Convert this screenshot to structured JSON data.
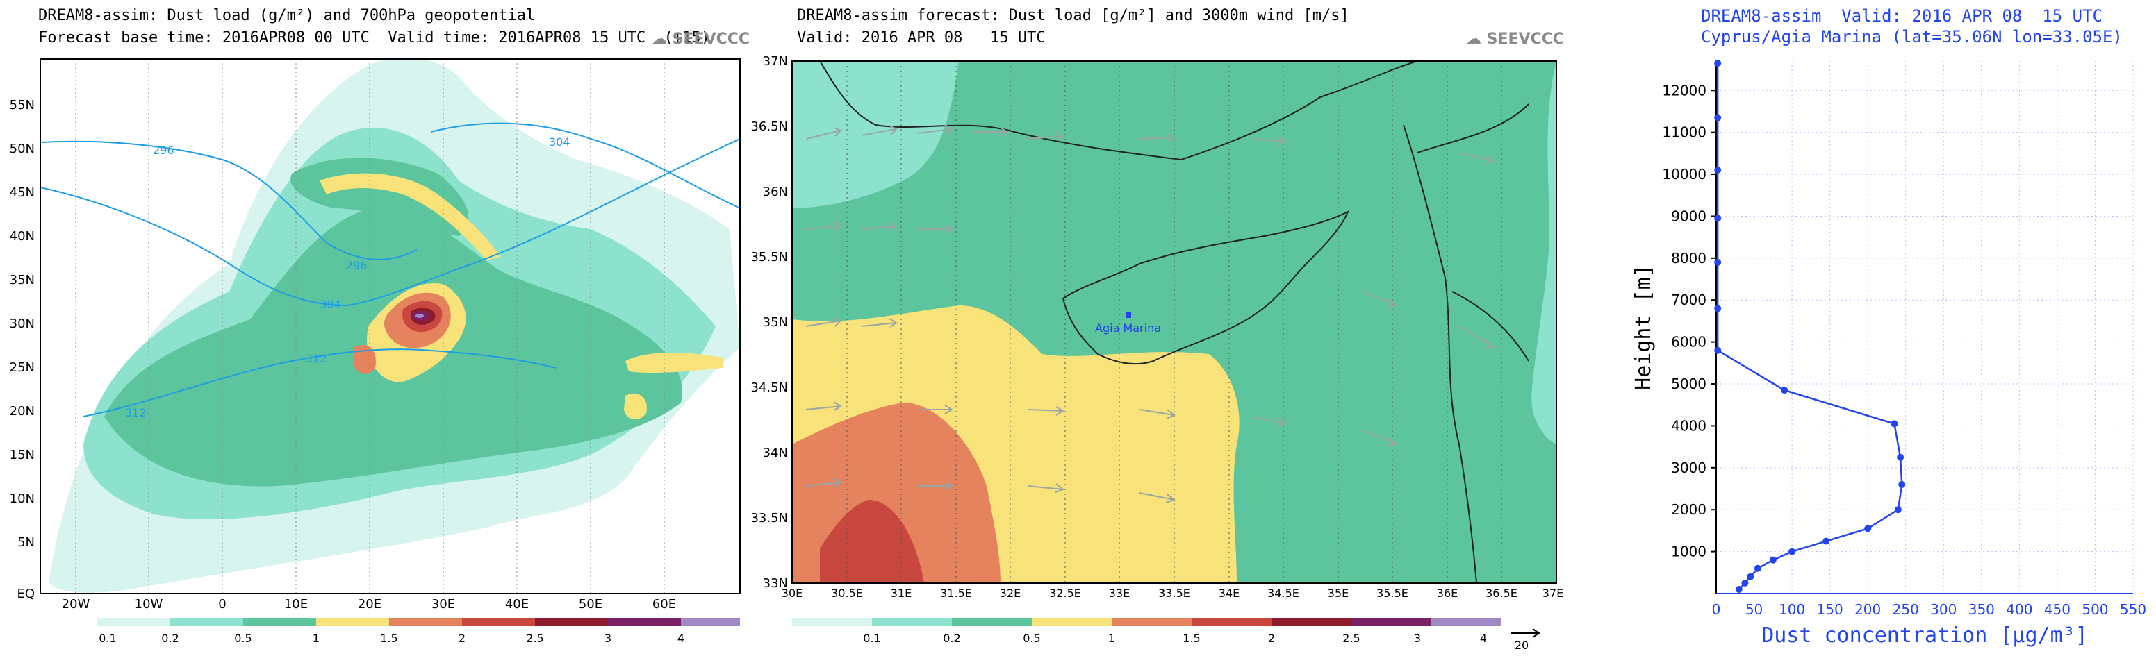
{
  "colors": {
    "c01": "#d7f4ee",
    "c02": "#8de2cd",
    "c05": "#5cc59e",
    "c1": "#f7e37a",
    "c15": "#e4835e",
    "c2": "#c8473e",
    "c25": "#8c1c2d",
    "c3": "#7a2265",
    "c4": "#9f88c4",
    "profile": "#2244ee",
    "logo": "#8a8a8a"
  },
  "left_panel": {
    "title": "DREAM8-assim: Dust load (g/m²) and 700hPa geopotential",
    "subtitle": "Forecast base time: 2016APR08 00 UTC  Valid time: 2016APR08 15 UTC  (+15)",
    "logo": "SEEVCCC",
    "lat_labels": [
      "55N",
      "50N",
      "45N",
      "40N",
      "35N",
      "30N",
      "25N",
      "20N",
      "15N",
      "10N",
      "5N",
      "EQ"
    ],
    "lon_labels": [
      "20W",
      "10W",
      "0",
      "10E",
      "20E",
      "30E",
      "40E",
      "50E",
      "60E"
    ],
    "contour_labels": [
      "296",
      "304",
      "296",
      "304",
      "312",
      "312"
    ],
    "legend": [
      "0.1",
      "0.2",
      "0.5",
      "1",
      "1.5",
      "2",
      "2.5",
      "3",
      "4"
    ]
  },
  "mid_panel": {
    "title": "DREAM8-assim forecast: Dust load [g/m²] and 3000m wind [m/s]",
    "subtitle": "Valid: 2016 APR 08   15 UTC",
    "logo": "SEEVCCC",
    "site_label": "Agia Marina",
    "lat_labels": [
      "37N",
      "36.5N",
      "36N",
      "35.5N",
      "35N",
      "34.5N",
      "34N",
      "33.5N",
      "33N"
    ],
    "lon_labels": [
      "30E",
      "30.5E",
      "31E",
      "31.5E",
      "32E",
      "32.5E",
      "33E",
      "33.5E",
      "34E",
      "34.5E",
      "35E",
      "35.5E",
      "36E",
      "36.5E",
      "37E"
    ],
    "legend": [
      "0.1",
      "0.2",
      "0.5",
      "1",
      "1.5",
      "2",
      "2.5",
      "3",
      "4"
    ],
    "wind_ref": "20"
  },
  "right_panel": {
    "title_line1": "DREAM8-assim  Valid: 2016 APR 08  15 UTC",
    "title_line2": "Cyprus/Agia Marina (lat=35.06N lon=33.05E)",
    "ylabel": "Height [m]",
    "xlabel": "Dust concentration [μg/m³]"
  },
  "chart_data": [
    {
      "type": "heatmap",
      "title": "DREAM8-assim: Dust load (g/m²) and 700hPa geopotential",
      "xlabel": "",
      "ylabel": "",
      "xlim": [
        -25,
        70
      ],
      "ylim": [
        0,
        60
      ],
      "levels": [
        0.1,
        0.2,
        0.5,
        1,
        1.5,
        2,
        2.5,
        3,
        4
      ],
      "max_region": {
        "lon": 26,
        "lat": 31,
        "value": 3.5
      }
    },
    {
      "type": "heatmap",
      "title": "DREAM8-assim forecast: Dust load [g/m²] and 3000m wind [m/s]",
      "xlabel": "",
      "ylabel": "",
      "xlim": [
        30,
        37
      ],
      "ylim": [
        33,
        37
      ],
      "levels": [
        0.1,
        0.2,
        0.5,
        1,
        1.5,
        2,
        2.5,
        3,
        4
      ],
      "site": {
        "name": "Agia Marina",
        "lat": 35.06,
        "lon": 33.05
      }
    },
    {
      "type": "line",
      "title": "DREAM8-assim  Valid: 2016 APR 08  15 UTC",
      "xlabel": "Dust concentration [μg/m³]",
      "ylabel": "Height [m]",
      "xlim": [
        0,
        550
      ],
      "ylim": [
        0,
        12700
      ],
      "xticks": [
        0,
        50,
        100,
        150,
        200,
        250,
        300,
        350,
        400,
        450,
        500,
        550
      ],
      "yticks": [
        1000,
        2000,
        3000,
        4000,
        5000,
        6000,
        7000,
        8000,
        9000,
        10000,
        11000,
        12000
      ],
      "grid": true,
      "series": [
        {
          "x": [
            30,
            38,
            45,
            55,
            75,
            100,
            145,
            200,
            240,
            245,
            243,
            235,
            90,
            2,
            2,
            2,
            2,
            2,
            2,
            2
          ],
          "y": [
            100,
            250,
            400,
            600,
            800,
            1000,
            1250,
            1550,
            2000,
            2600,
            3250,
            4050,
            4850,
            5800,
            6800,
            7900,
            8950,
            10100,
            11350,
            12650
          ]
        }
      ]
    }
  ]
}
